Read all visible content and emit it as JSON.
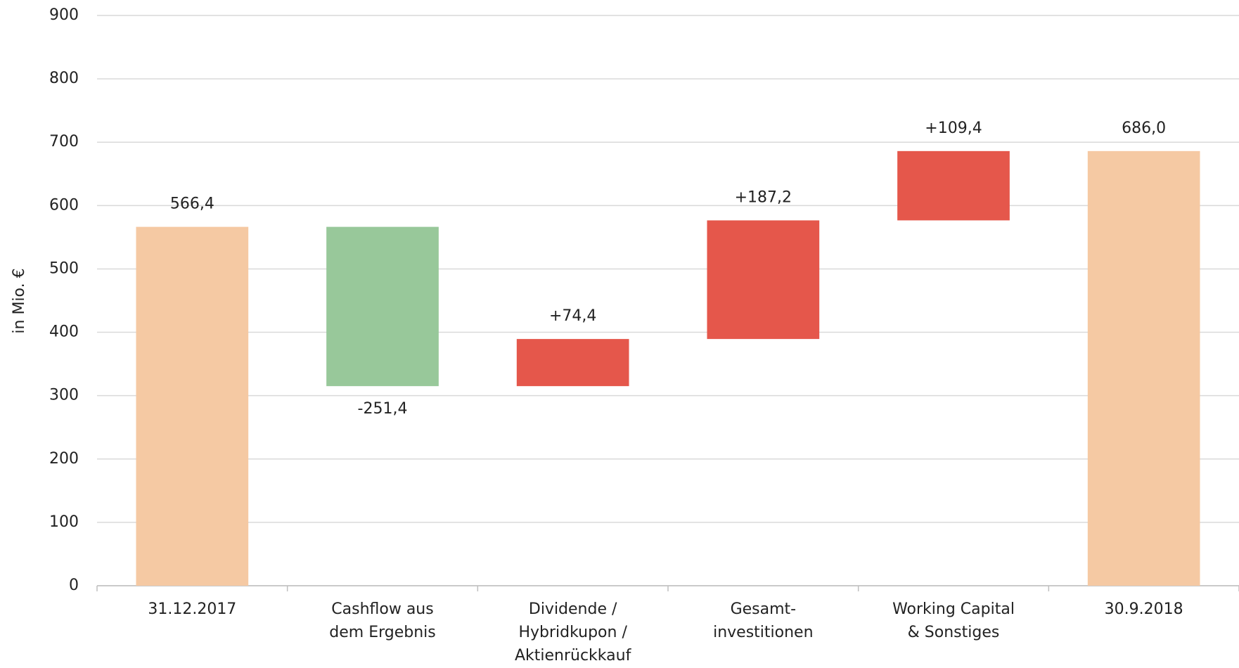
{
  "chart_data": {
    "type": "waterfall",
    "y_label": "in Mio. €",
    "categories": [
      "31.12.2017",
      "Cashflow aus\ndem Ergebnis",
      "Dividende /\nHybridkupon /\nAktienrückkauf",
      "Gesamt-\ninvestitionen",
      "Working Capital\n& Sonstiges",
      "30.9.2018"
    ],
    "values": [
      566.4,
      -251.4,
      74.4,
      187.2,
      109.4,
      686.0
    ],
    "value_labels": [
      "566,4",
      "-251,4",
      "+74,4",
      "+187,2",
      "+109,4",
      "686,0"
    ],
    "totals": [
      true,
      false,
      false,
      false,
      false,
      true
    ],
    "colors": [
      "#f5c9a3",
      "#98c89a",
      "#e5574b",
      "#e5574b",
      "#e5574b",
      "#f5c9a3"
    ],
    "ylim": [
      0,
      900
    ],
    "yticks": [
      0,
      100,
      200,
      300,
      400,
      500,
      600,
      700,
      800,
      900
    ],
    "grid": true
  }
}
